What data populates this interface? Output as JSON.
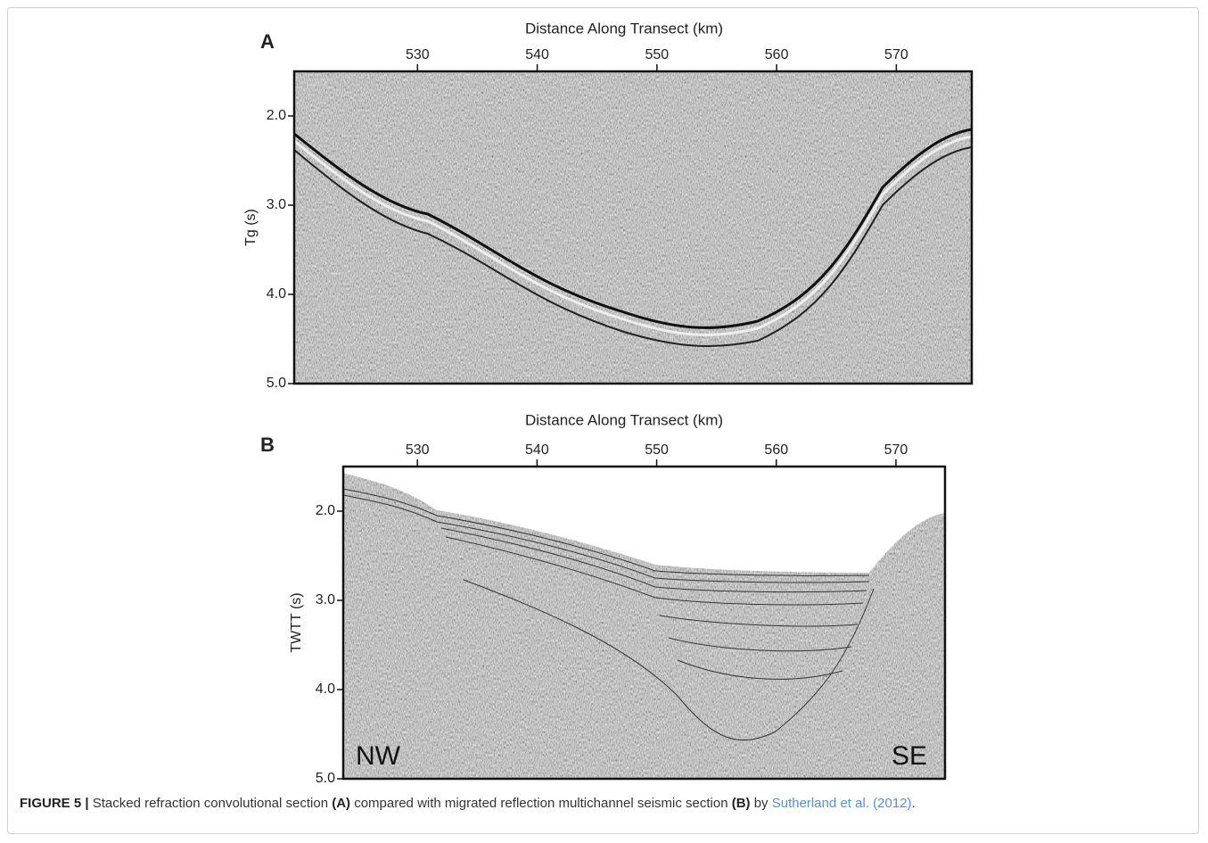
{
  "panels": [
    {
      "label": "A",
      "x_label": "Distance Along Transect (km)",
      "y_label": "Tg (s)",
      "xlim": [
        519.7,
        576.3
      ],
      "xticks": [
        530,
        540,
        550,
        560,
        570
      ],
      "ylim": [
        1.5,
        5.0
      ],
      "yticks": [
        {
          "value": 2,
          "label": "2.0"
        },
        {
          "value": 3,
          "label": "3.0"
        },
        {
          "value": 4,
          "label": "4.0"
        },
        {
          "value": 5,
          "label": "5.0"
        }
      ]
    },
    {
      "label": "B",
      "x_label": "Distance Along Transect (km)",
      "y_label": "TWTT (s)",
      "xlim": [
        523.8,
        574.1
      ],
      "xticks": [
        530,
        540,
        550,
        560,
        570
      ],
      "ylim": [
        1.5,
        5.0
      ],
      "yticks": [
        {
          "value": 2,
          "label": "2.0"
        },
        {
          "value": 3,
          "label": "3.0"
        },
        {
          "value": 4,
          "label": "4.0"
        },
        {
          "value": 5,
          "label": "5.0"
        }
      ],
      "left_annotation": "NW",
      "right_annotation": "SE"
    }
  ],
  "caption": {
    "figure": "FIGURE 5 |",
    "text1": " Stacked refraction convolutional section ",
    "ref_a": "(A)",
    "text2": " compared with migrated reflection multichannel seismic section ",
    "ref_b": "(B)",
    "text3": " by ",
    "citation": "Sutherland et al. (2012)",
    "text4": "."
  }
}
